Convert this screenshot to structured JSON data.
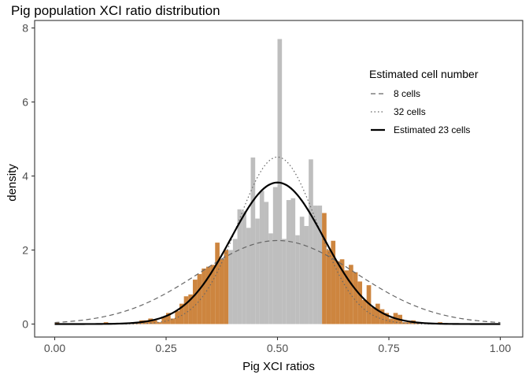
{
  "chart_data": {
    "type": "bar",
    "title": "Pig population XCI ratio distribution",
    "xlabel": "Pig XCI ratios",
    "ylabel": "density",
    "xlim": [
      0,
      1
    ],
    "ylim": [
      0,
      8
    ],
    "x_ticks": [
      0,
      0.25,
      0.5,
      0.75,
      1
    ],
    "x_tick_labels": [
      "0.00",
      "0.25",
      "0.50",
      "0.75",
      "1.00"
    ],
    "y_ticks": [
      0,
      2,
      4,
      6,
      8
    ],
    "y_tick_labels": [
      "0",
      "2",
      "4",
      "6",
      "8"
    ],
    "grid": false,
    "histogram": {
      "bin_width": 0.01,
      "colors": {
        "central": "#bebebe",
        "tails": "#cd853f"
      },
      "central_range": [
        0.39,
        0.6
      ],
      "bins": [
        {
          "x": 0.005,
          "y": 0.05
        },
        {
          "x": 0.115,
          "y": 0.05
        },
        {
          "x": 0.175,
          "y": 0.05
        },
        {
          "x": 0.185,
          "y": 0.05
        },
        {
          "x": 0.195,
          "y": 0.1
        },
        {
          "x": 0.205,
          "y": 0.1
        },
        {
          "x": 0.215,
          "y": 0.15
        },
        {
          "x": 0.225,
          "y": 0.1
        },
        {
          "x": 0.235,
          "y": 0.05
        },
        {
          "x": 0.245,
          "y": 0.2
        },
        {
          "x": 0.255,
          "y": 0.3
        },
        {
          "x": 0.265,
          "y": 0.15
        },
        {
          "x": 0.275,
          "y": 0.35
        },
        {
          "x": 0.285,
          "y": 0.55
        },
        {
          "x": 0.295,
          "y": 0.75
        },
        {
          "x": 0.305,
          "y": 0.8
        },
        {
          "x": 0.315,
          "y": 1.2
        },
        {
          "x": 0.325,
          "y": 1.35
        },
        {
          "x": 0.335,
          "y": 1.5
        },
        {
          "x": 0.345,
          "y": 1.55
        },
        {
          "x": 0.355,
          "y": 1.6
        },
        {
          "x": 0.365,
          "y": 2.2
        },
        {
          "x": 0.375,
          "y": 1.75
        },
        {
          "x": 0.385,
          "y": 2.0
        },
        {
          "x": 0.395,
          "y": 2.0
        },
        {
          "x": 0.405,
          "y": 2.3
        },
        {
          "x": 0.415,
          "y": 3.1
        },
        {
          "x": 0.425,
          "y": 3.05
        },
        {
          "x": 0.435,
          "y": 2.6
        },
        {
          "x": 0.445,
          "y": 4.5
        },
        {
          "x": 0.455,
          "y": 2.85
        },
        {
          "x": 0.465,
          "y": 3.6
        },
        {
          "x": 0.475,
          "y": 3.3
        },
        {
          "x": 0.485,
          "y": 2.45
        },
        {
          "x": 0.495,
          "y": 3.7
        },
        {
          "x": 0.505,
          "y": 7.7
        },
        {
          "x": 0.515,
          "y": 2.3
        },
        {
          "x": 0.525,
          "y": 3.35
        },
        {
          "x": 0.535,
          "y": 3.4
        },
        {
          "x": 0.545,
          "y": 2.4
        },
        {
          "x": 0.555,
          "y": 2.9
        },
        {
          "x": 0.565,
          "y": 2.65
        },
        {
          "x": 0.575,
          "y": 4.45
        },
        {
          "x": 0.585,
          "y": 3.2
        },
        {
          "x": 0.595,
          "y": 3.2
        },
        {
          "x": 0.605,
          "y": 3.0
        },
        {
          "x": 0.615,
          "y": 2.0
        },
        {
          "x": 0.625,
          "y": 2.25
        },
        {
          "x": 0.635,
          "y": 1.7
        },
        {
          "x": 0.645,
          "y": 1.75
        },
        {
          "x": 0.655,
          "y": 1.45
        },
        {
          "x": 0.665,
          "y": 1.6
        },
        {
          "x": 0.675,
          "y": 1.4
        },
        {
          "x": 0.685,
          "y": 1.15
        },
        {
          "x": 0.695,
          "y": 0.65
        },
        {
          "x": 0.705,
          "y": 1.05
        },
        {
          "x": 0.715,
          "y": 0.45
        },
        {
          "x": 0.725,
          "y": 0.55
        },
        {
          "x": 0.735,
          "y": 0.4
        },
        {
          "x": 0.745,
          "y": 0.3
        },
        {
          "x": 0.755,
          "y": 0.15
        },
        {
          "x": 0.765,
          "y": 0.3
        },
        {
          "x": 0.775,
          "y": 0.25
        },
        {
          "x": 0.785,
          "y": 0.05
        },
        {
          "x": 0.795,
          "y": 0.05
        },
        {
          "x": 0.805,
          "y": 0.1
        },
        {
          "x": 0.815,
          "y": 0.05
        },
        {
          "x": 0.865,
          "y": 0.05
        }
      ]
    },
    "curves": [
      {
        "name": "8 cells",
        "mean": 0.5,
        "sd": 0.1768,
        "style": "dashed",
        "color": "#666666",
        "width": 1.2
      },
      {
        "name": "32 cells",
        "mean": 0.5,
        "sd": 0.0884,
        "style": "dotted",
        "color": "#666666",
        "width": 1.2
      },
      {
        "name": "Estimated 23 cells",
        "mean": 0.5,
        "sd": 0.1043,
        "style": "solid",
        "color": "#000000",
        "width": 2.2
      }
    ],
    "legend": {
      "title": "Estimated cell number",
      "placement": "top-right",
      "entries": [
        "8 cells",
        "32 cells",
        "Estimated 23 cells"
      ]
    }
  }
}
